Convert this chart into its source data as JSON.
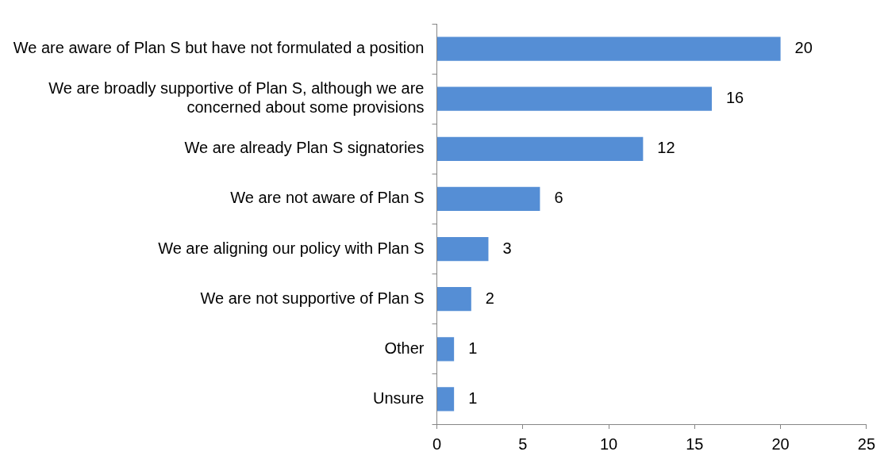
{
  "chart_data": {
    "type": "bar",
    "orientation": "horizontal",
    "categories": [
      "We are aware of Plan S but have not formulated a position",
      "We are broadly supportive of Plan S, although we are concerned about some provisions",
      "We are already Plan S signatories",
      "We are not aware of Plan S",
      "We are aligning our policy with Plan S",
      "We are not supportive of Plan S",
      "Other",
      "Unsure"
    ],
    "values": [
      20,
      16,
      12,
      6,
      3,
      2,
      1,
      1
    ],
    "color": "#558ed5",
    "xlim": [
      0,
      25
    ],
    "xticks": [
      0,
      5,
      10,
      15,
      20,
      25
    ],
    "grid": false,
    "legend": false,
    "data_labels": true
  }
}
